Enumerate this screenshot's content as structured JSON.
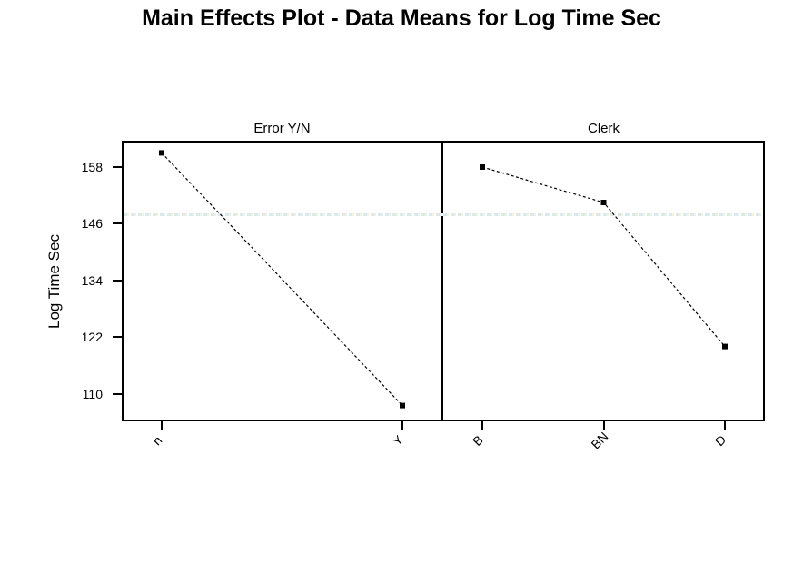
{
  "chart_data": {
    "type": "line",
    "title": "Main Effects Plot - Data Means for Log Time Sec",
    "ylabel": "Log Time Sec",
    "y_ticks": [
      158,
      146,
      134,
      122,
      110
    ],
    "ylim": [
      104,
      164
    ],
    "grid": false,
    "legend": "none",
    "reference_line_value": 148,
    "panels": [
      {
        "label": "Error Y/N",
        "categories": [
          "n",
          "Y"
        ],
        "values": [
          161,
          107.5
        ]
      },
      {
        "label": "Clerk",
        "categories": [
          "B",
          "BN",
          "D"
        ],
        "values": [
          158,
          150.5,
          120
        ]
      }
    ],
    "colors": {
      "series_line": "#000000",
      "marker": "#000000",
      "reference_line_a": "#d8eaf0",
      "reference_line_b": "#f4f1d9",
      "background": "#ffffff",
      "text": "#000000"
    }
  }
}
